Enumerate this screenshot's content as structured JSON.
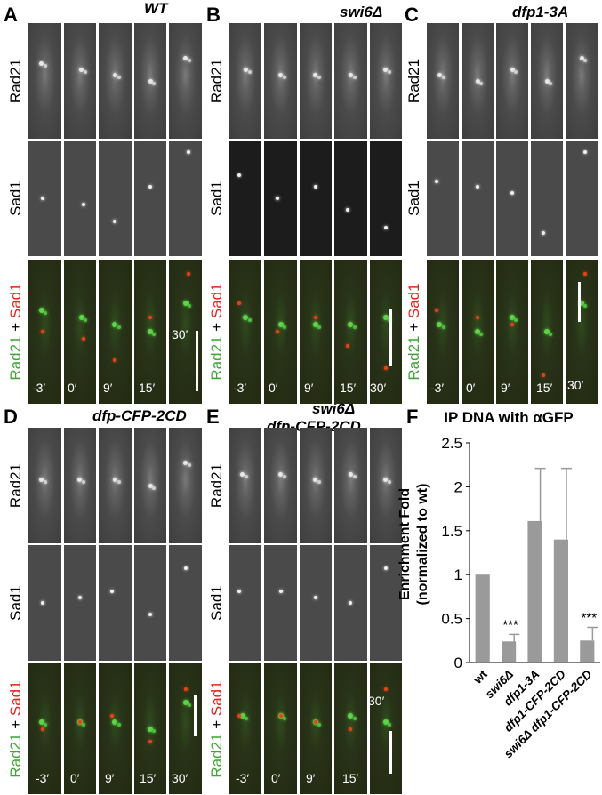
{
  "panels": [
    {
      "letter": "A",
      "genotype": "WT"
    },
    {
      "letter": "B",
      "genotype": "swi6Δ"
    },
    {
      "letter": "C",
      "genotype": "dfp1-3A"
    },
    {
      "letter": "D",
      "genotype": "dfp-CFP-2CD"
    },
    {
      "letter": "E",
      "genotype_line1": "swi6Δ",
      "genotype_line2": "dfp-CFP-2CD"
    }
  ],
  "row_labels": {
    "rad21": "Rad21",
    "sad1": "Sad1",
    "merge_a": "Rad21",
    "merge_plus": " + ",
    "merge_b": "Sad1"
  },
  "timepoints": [
    "-3′",
    "0′",
    "9′",
    "15′",
    "30′"
  ],
  "colors": {
    "green": "#3fa535",
    "red": "#e2231a",
    "bar": "#9a9a9a"
  },
  "panel_f": {
    "letter": "F"
  },
  "chart_data": {
    "type": "bar",
    "title": "IP DNA with αGFP",
    "ylabel_line1": "Enrichment Fold",
    "ylabel_line2": "(normalized to wt)",
    "categories": [
      "wt",
      "swi6Δ",
      "dfp1-3A",
      "dfp1-CFP-2CD",
      "swi6Δ dfp1-CFP-2CD"
    ],
    "values": [
      1.0,
      0.24,
      1.61,
      1.4,
      0.25
    ],
    "errors": [
      0.0,
      0.08,
      0.6,
      0.81,
      0.15
    ],
    "significance": [
      "",
      "***",
      "",
      "",
      "***"
    ],
    "ylim": [
      0,
      2.5
    ],
    "yticks": [
      "0",
      "0.5",
      "1",
      "1.5",
      "2",
      "2.5"
    ]
  }
}
